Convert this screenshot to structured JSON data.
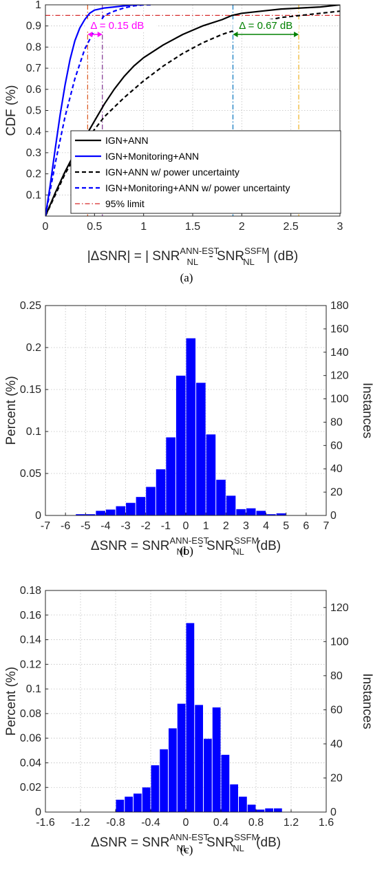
{
  "captions": [
    "(a)",
    "(b)",
    "(c)"
  ],
  "chart_data": [
    {
      "type": "line",
      "xlabel_parts": [
        "|ΔSNR| = | SNR",
        "ANN-EST",
        "NL",
        " - SNR",
        "SSFM",
        "NL",
        " | (dB)"
      ],
      "ylabel": "CDF (%)",
      "xlim": [
        0,
        3
      ],
      "ylim": [
        0,
        1
      ],
      "xticks": [
        "0",
        "0.5",
        "1",
        "1.5",
        "2",
        "2.5",
        "3"
      ],
      "yticks": [
        "0.1",
        "0.2",
        "0.3",
        "0.4",
        "0.5",
        "0.6",
        "0.7",
        "0.8",
        "0.9",
        "1"
      ],
      "grid": true,
      "legend_position": "bottom-right",
      "series": [
        {
          "name": "IGN+ANN",
          "color": "#000000",
          "style": "solid",
          "x": [
            0,
            0.1,
            0.2,
            0.3,
            0.4,
            0.5,
            0.6,
            0.7,
            0.8,
            0.9,
            1.0,
            1.2,
            1.4,
            1.6,
            1.8,
            1.9,
            2.0,
            2.2,
            2.4,
            2.6,
            2.8,
            3.0
          ],
          "y": [
            0,
            0.11,
            0.21,
            0.3,
            0.37,
            0.45,
            0.53,
            0.6,
            0.66,
            0.71,
            0.75,
            0.81,
            0.86,
            0.9,
            0.93,
            0.95,
            0.96,
            0.97,
            0.98,
            0.985,
            0.99,
            1.0
          ]
        },
        {
          "name": "IGN+Monitoring+ANN",
          "color": "#0000ff",
          "style": "solid",
          "x": [
            0,
            0.05,
            0.1,
            0.15,
            0.2,
            0.25,
            0.3,
            0.35,
            0.4,
            0.45,
            0.5,
            0.6,
            0.7,
            0.8,
            0.9,
            1.0
          ],
          "y": [
            0,
            0.15,
            0.32,
            0.48,
            0.62,
            0.74,
            0.83,
            0.89,
            0.93,
            0.96,
            0.975,
            0.985,
            0.99,
            0.995,
            1.0,
            1.0
          ]
        },
        {
          "name": "IGN+ANN w/ power uncertainty",
          "color": "#000000",
          "style": "dashed",
          "x": [
            0,
            0.1,
            0.2,
            0.3,
            0.4,
            0.5,
            0.6,
            0.8,
            1.0,
            1.2,
            1.4,
            1.6,
            1.8,
            2.0,
            2.2,
            2.4,
            2.6,
            2.8,
            3.0
          ],
          "y": [
            0,
            0.1,
            0.2,
            0.28,
            0.35,
            0.41,
            0.47,
            0.56,
            0.64,
            0.71,
            0.77,
            0.82,
            0.86,
            0.89,
            0.92,
            0.94,
            0.95,
            0.96,
            0.97
          ]
        },
        {
          "name": "IGN+Monitoring+ANN w/ power uncertainty",
          "color": "#0000ff",
          "style": "dashed",
          "x": [
            0,
            0.1,
            0.2,
            0.3,
            0.4,
            0.5,
            0.6,
            0.7,
            0.8,
            0.9,
            1.0,
            1.1
          ],
          "y": [
            0,
            0.25,
            0.47,
            0.65,
            0.79,
            0.88,
            0.95,
            0.97,
            0.985,
            0.995,
            1.0,
            1.0
          ]
        }
      ],
      "limit_line": {
        "name": "95% limit",
        "y": 0.95,
        "color": "#d62728"
      },
      "vlines": [
        {
          "x": 0.43,
          "color": "#d95319"
        },
        {
          "x": 0.58,
          "color": "#7e2f8e"
        },
        {
          "x": 1.91,
          "color": "#0072bd"
        },
        {
          "x": 2.58,
          "color": "#edb120"
        }
      ],
      "annotations": [
        {
          "text": "Δ = 0.15 dB",
          "from": 0.43,
          "to": 0.58,
          "y": 0.86,
          "color": "#ff00ff"
        },
        {
          "text": "Δ = 0.67 dB",
          "from": 1.91,
          "to": 2.58,
          "y": 0.86,
          "color": "#008000"
        }
      ]
    },
    {
      "type": "bar",
      "xlabel_parts": [
        "ΔSNR = SNR",
        "ANN-EST",
        "NL",
        " - SNR",
        "SSFM",
        "NL",
        " (dB)"
      ],
      "ylabel": "Percent (%)",
      "y2label": "Instances",
      "xlim": [
        -7,
        7
      ],
      "ylim": [
        0,
        0.25
      ],
      "y2lim": [
        0,
        180
      ],
      "xticks": [
        "-7",
        "-6",
        "-5",
        "-4",
        "-3",
        "-2",
        "-1",
        "0",
        "1",
        "2",
        "3",
        "4",
        "5",
        "6",
        "7"
      ],
      "yticks": [
        "0",
        "0.05",
        "0.1",
        "0.15",
        "0.2",
        "0.25"
      ],
      "y2ticks": [
        "0",
        "20",
        "40",
        "60",
        "80",
        "100",
        "120",
        "140",
        "160",
        "180"
      ],
      "grid": true,
      "bar_color": "#0000ff",
      "bin_width": 0.5,
      "x": [
        -5.25,
        -4.75,
        -4.25,
        -3.75,
        -3.25,
        -2.75,
        -2.25,
        -1.75,
        -1.25,
        -0.75,
        -0.25,
        0.25,
        0.75,
        1.25,
        1.75,
        2.25,
        2.75,
        3.25,
        3.75,
        4.25,
        4.75
      ],
      "values": [
        0.0015,
        0.0015,
        0.0055,
        0.007,
        0.011,
        0.015,
        0.022,
        0.034,
        0.055,
        0.093,
        0.1665,
        0.211,
        0.158,
        0.0965,
        0.0425,
        0.0235,
        0.0075,
        0.0085,
        0.0055,
        0.0015,
        0.0025
      ]
    },
    {
      "type": "bar",
      "xlabel_parts": [
        "ΔSNR = SNR",
        "ANN-EST",
        "NL",
        " - SNR",
        "SSFM",
        "NL",
        " (dB)"
      ],
      "ylabel": "Percent (%)",
      "y2label": "Instances",
      "xlim": [
        -1.6,
        1.6
      ],
      "ylim": [
        0,
        0.18
      ],
      "y2lim": [
        0,
        130
      ],
      "xticks": [
        "-1.6",
        "-1.2",
        "-0.8",
        "-0.4",
        "0",
        "0.4",
        "0.8",
        "1.2",
        "1.6"
      ],
      "yticks": [
        "0",
        "0.02",
        "0.04",
        "0.06",
        "0.08",
        "0.1",
        "0.12",
        "0.14",
        "0.16",
        "0.18"
      ],
      "y2ticks": [
        "0",
        "20",
        "40",
        "60",
        "80",
        "100",
        "120"
      ],
      "grid": true,
      "bar_color": "#0000ff",
      "bin_width": 0.1,
      "x": [
        -0.75,
        -0.65,
        -0.55,
        -0.45,
        -0.35,
        -0.25,
        -0.15,
        -0.05,
        0.05,
        0.15,
        0.25,
        0.35,
        0.45,
        0.55,
        0.65,
        0.75,
        0.85,
        0.95,
        1.05
      ],
      "values": [
        0.01,
        0.0125,
        0.015,
        0.02,
        0.038,
        0.051,
        0.068,
        0.088,
        0.1535,
        0.087,
        0.0595,
        0.085,
        0.0465,
        0.0225,
        0.0125,
        0.006,
        0.002,
        0.003,
        0.003
      ]
    }
  ]
}
